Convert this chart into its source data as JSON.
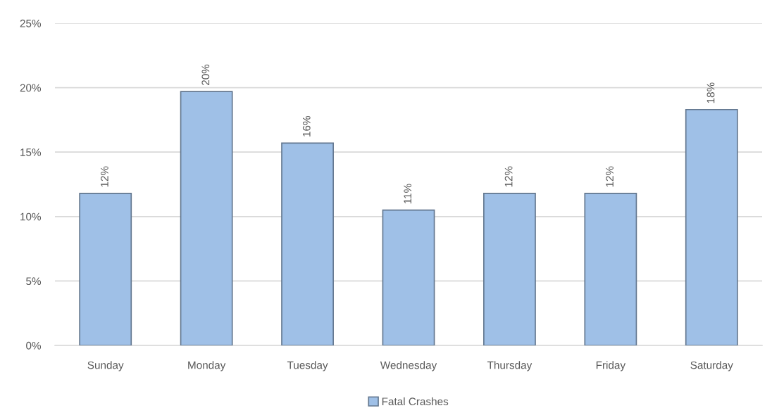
{
  "chart_data": {
    "type": "bar",
    "categories": [
      "Sunday",
      "Monday",
      "Tuesday",
      "Wednesday",
      "Thursday",
      "Friday",
      "Saturday"
    ],
    "series": [
      {
        "name": "Fatal Crashes",
        "color": "#9fc0e7",
        "values": [
          11.8,
          19.7,
          15.7,
          10.5,
          11.8,
          11.8,
          18.3
        ],
        "value_labels": [
          "12%",
          "20%",
          "16%",
          "11%",
          "12%",
          "12%",
          "18%"
        ]
      }
    ],
    "ylim": [
      0,
      25
    ],
    "yticks": [
      {
        "value": 0,
        "label": "0%"
      },
      {
        "value": 5,
        "label": "5%"
      },
      {
        "value": 10,
        "label": "10%"
      },
      {
        "value": 15,
        "label": "15%"
      },
      {
        "value": 20,
        "label": "20%"
      },
      {
        "value": 25,
        "label": "25%"
      }
    ],
    "grid": "y",
    "legend": "bottom"
  }
}
